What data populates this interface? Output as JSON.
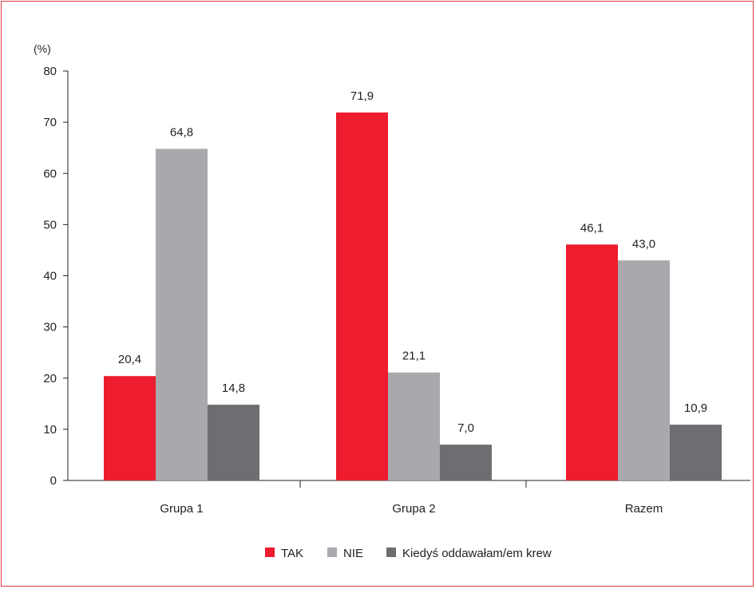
{
  "chart_data": {
    "type": "bar",
    "title": "",
    "ylabel": "(%)",
    "xlabel": "",
    "ylim": [
      0,
      80
    ],
    "yticks": [
      0,
      10,
      20,
      30,
      40,
      50,
      60,
      70,
      80
    ],
    "grid": false,
    "legend_position": "bottom",
    "categories": [
      "Grupa 1",
      "Grupa 2",
      "Razem"
    ],
    "series": [
      {
        "name": "TAK",
        "color": "#ed1c2e",
        "values": [
          20.4,
          71.9,
          46.1
        ],
        "labels": [
          "20,4",
          "71,9",
          "46,1"
        ]
      },
      {
        "name": "NIE",
        "color": "#a7a9ac",
        "values": [
          64.8,
          21.1,
          43.0
        ],
        "labels": [
          "64,8",
          "21,1",
          "43,0"
        ]
      },
      {
        "name": "Kiedyś oddawałam/em krew",
        "color": "#6d6e71",
        "values": [
          14.8,
          7.0,
          10.9
        ],
        "labels": [
          "14,8",
          "7,0",
          "10,9"
        ]
      }
    ]
  }
}
